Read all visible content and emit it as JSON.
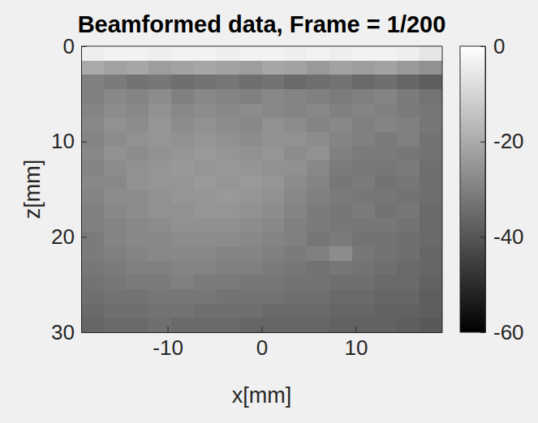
{
  "chart_data": {
    "type": "heatmap",
    "title": "Beamformed data, Frame = 1/200",
    "x_label": "x[mm]",
    "y_label": "z[mm]",
    "xlim": [
      -19.2,
      19.2
    ],
    "ylim": [
      0,
      30
    ],
    "xticks": [
      -10,
      0,
      10
    ],
    "yticks": [
      0,
      10,
      20,
      30
    ],
    "colorbar_range": [
      -60,
      0
    ],
    "colorbar_ticks": [
      0,
      -20,
      -40,
      -60
    ],
    "x": [
      -18,
      -15.6,
      -13.2,
      -10.8,
      -8.4,
      -6,
      -3.6,
      -1.2,
      1.2,
      3.6,
      6,
      8.4,
      10.8,
      13.2,
      15.6,
      18
    ],
    "y": [
      0.75,
      2.25,
      3.75,
      5.25,
      6.75,
      8.25,
      9.75,
      11.25,
      12.75,
      14.25,
      15.75,
      17.25,
      18.75,
      20.25,
      21.75,
      23.25,
      24.75,
      26.25,
      27.75,
      29.25
    ],
    "values": [
      [
        -4,
        -3,
        -3,
        -4,
        -3,
        -3,
        -4,
        -3,
        -3,
        -4,
        -3,
        -4,
        -3,
        -3,
        -4,
        -6
      ],
      [
        -20,
        -22,
        -21,
        -23,
        -22,
        -21,
        -22,
        -23,
        -21,
        -22,
        -24,
        -22,
        -23,
        -22,
        -24,
        -26
      ],
      [
        -30,
        -31,
        -33,
        -32,
        -34,
        -33,
        -32,
        -34,
        -33,
        -35,
        -34,
        -33,
        -35,
        -34,
        -36,
        -38
      ],
      [
        -30,
        -28,
        -29,
        -27,
        -30,
        -28,
        -29,
        -30,
        -28,
        -29,
        -30,
        -31,
        -30,
        -29,
        -31,
        -33
      ],
      [
        -29,
        -27,
        -28,
        -26,
        -28,
        -27,
        -28,
        -27,
        -28,
        -29,
        -28,
        -30,
        -29,
        -30,
        -31,
        -32
      ],
      [
        -28,
        -26,
        -27,
        -25,
        -27,
        -26,
        -27,
        -28,
        -26,
        -27,
        -29,
        -28,
        -30,
        -29,
        -30,
        -32
      ],
      [
        -29,
        -27,
        -26,
        -25,
        -26,
        -25,
        -26,
        -27,
        -26,
        -26,
        -27,
        -29,
        -30,
        -31,
        -30,
        -33
      ],
      [
        -28,
        -26,
        -27,
        -26,
        -25,
        -24,
        -25,
        -26,
        -25,
        -27,
        -26,
        -30,
        -31,
        -31,
        -32,
        -33
      ],
      [
        -29,
        -27,
        -26,
        -25,
        -24,
        -25,
        -24,
        -25,
        -26,
        -26,
        -28,
        -31,
        -32,
        -32,
        -31,
        -34
      ],
      [
        -28,
        -28,
        -26,
        -25,
        -25,
        -24,
        -25,
        -24,
        -25,
        -27,
        -29,
        -32,
        -31,
        -33,
        -32,
        -34
      ],
      [
        -29,
        -27,
        -27,
        -26,
        -25,
        -25,
        -24,
        -25,
        -26,
        -28,
        -30,
        -31,
        -32,
        -32,
        -33,
        -34
      ],
      [
        -30,
        -28,
        -27,
        -26,
        -26,
        -25,
        -25,
        -26,
        -27,
        -29,
        -31,
        -32,
        -31,
        -33,
        -32,
        -35
      ],
      [
        -30,
        -29,
        -28,
        -27,
        -26,
        -26,
        -26,
        -27,
        -28,
        -30,
        -31,
        -32,
        -32,
        -32,
        -33,
        -35
      ],
      [
        -31,
        -29,
        -28,
        -28,
        -27,
        -27,
        -27,
        -28,
        -29,
        -30,
        -32,
        -31,
        -33,
        -33,
        -34,
        -35
      ],
      [
        -31,
        -30,
        -29,
        -28,
        -28,
        -28,
        -29,
        -29,
        -30,
        -31,
        -30,
        -27,
        -32,
        -33,
        -34,
        -36
      ],
      [
        -32,
        -31,
        -30,
        -30,
        -29,
        -29,
        -30,
        -30,
        -31,
        -32,
        -33,
        -32,
        -33,
        -34,
        -35,
        -36
      ],
      [
        -33,
        -32,
        -31,
        -31,
        -30,
        -31,
        -31,
        -32,
        -32,
        -33,
        -33,
        -34,
        -34,
        -35,
        -35,
        -37
      ],
      [
        -34,
        -33,
        -33,
        -32,
        -32,
        -32,
        -33,
        -33,
        -33,
        -34,
        -34,
        -35,
        -35,
        -36,
        -36,
        -38
      ],
      [
        -35,
        -34,
        -34,
        -33,
        -33,
        -34,
        -34,
        -34,
        -35,
        -35,
        -35,
        -36,
        -36,
        -37,
        -37,
        -38
      ],
      [
        -36,
        -35,
        -35,
        -34,
        -35,
        -35,
        -35,
        -36,
        -36,
        -36,
        -36,
        -37,
        -37,
        -37,
        -38,
        -39
      ]
    ]
  }
}
